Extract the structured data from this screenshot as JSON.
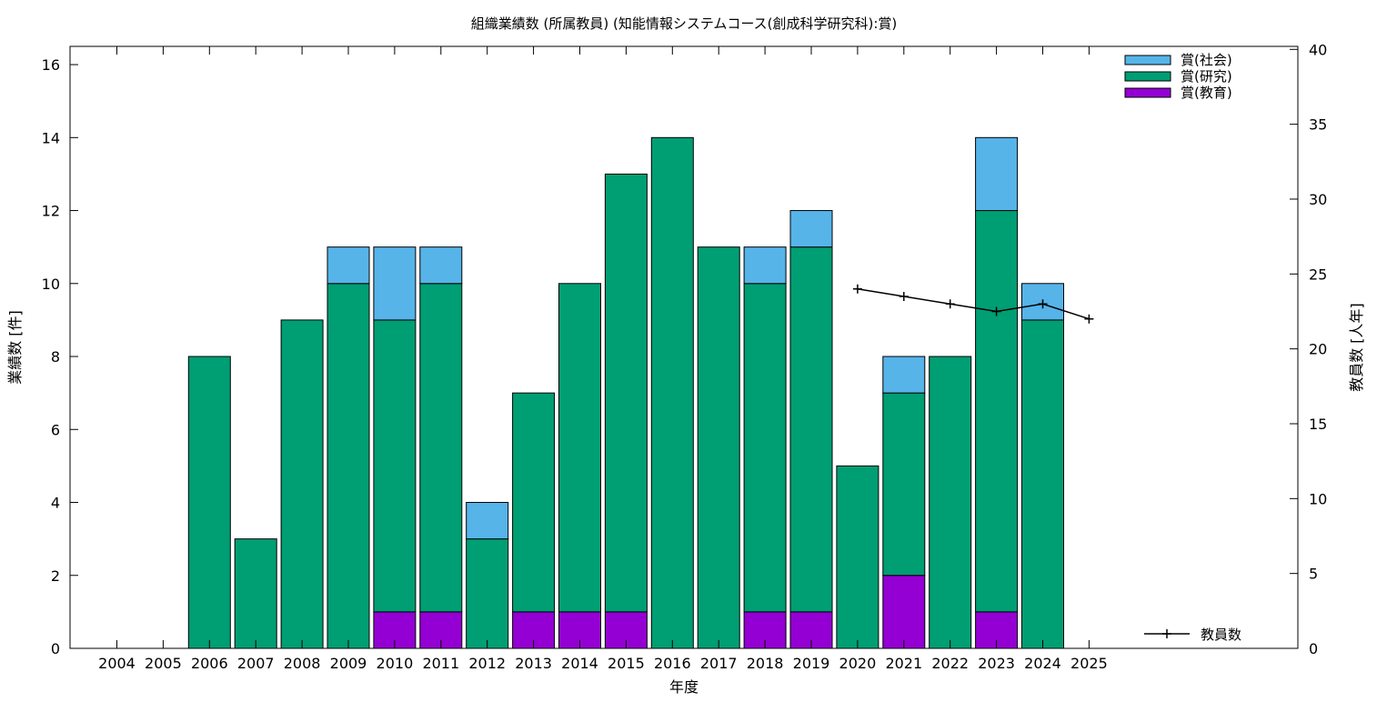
{
  "chart_data": {
    "type": "bar",
    "title": "組織業績数 (所属教員) (知能情報システムコース(創成科学研究科):賞)",
    "xlabel": "年度",
    "ylabel": "業績数 [件]",
    "y2label": "教員数 [人年]",
    "categories": [
      "2004",
      "2005",
      "2006",
      "2007",
      "2008",
      "2009",
      "2010",
      "2011",
      "2012",
      "2013",
      "2014",
      "2015",
      "2016",
      "2017",
      "2018",
      "2019",
      "2020",
      "2021",
      "2022",
      "2023",
      "2024",
      "2025"
    ],
    "ylim": [
      0,
      16.5
    ],
    "y_ticks": [
      0,
      2,
      4,
      6,
      8,
      10,
      12,
      14,
      16
    ],
    "y2lim": [
      0,
      40.2
    ],
    "y2_ticks": [
      0,
      5,
      10,
      15,
      20,
      25,
      30,
      35,
      40
    ],
    "stacked": true,
    "grid": false,
    "legend_position": "top-right",
    "series": [
      {
        "name": "賞(教育)",
        "color": "#9400d3",
        "values": [
          0,
          0,
          0,
          0,
          0,
          0,
          1,
          1,
          0,
          1,
          1,
          1,
          0,
          0,
          1,
          1,
          0,
          2,
          0,
          1,
          0,
          0
        ]
      },
      {
        "name": "賞(研究)",
        "color": "#009e73",
        "values": [
          0,
          0,
          8,
          3,
          9,
          10,
          8,
          9,
          3,
          6,
          9,
          12,
          14,
          11,
          9,
          10,
          5,
          5,
          8,
          11,
          9,
          0
        ]
      },
      {
        "name": "賞(社会)",
        "color": "#56b4e9",
        "values": [
          0,
          0,
          0,
          0,
          0,
          1,
          2,
          1,
          1,
          0,
          0,
          0,
          0,
          0,
          1,
          1,
          0,
          1,
          0,
          2,
          1,
          0
        ]
      }
    ],
    "line_series": {
      "name": "教員数",
      "color": "#000000",
      "axis": "y2",
      "x": [
        "2020",
        "2021",
        "2022",
        "2023",
        "2024",
        "2025"
      ],
      "values": [
        24,
        23.5,
        23,
        22.5,
        23,
        22
      ]
    }
  }
}
